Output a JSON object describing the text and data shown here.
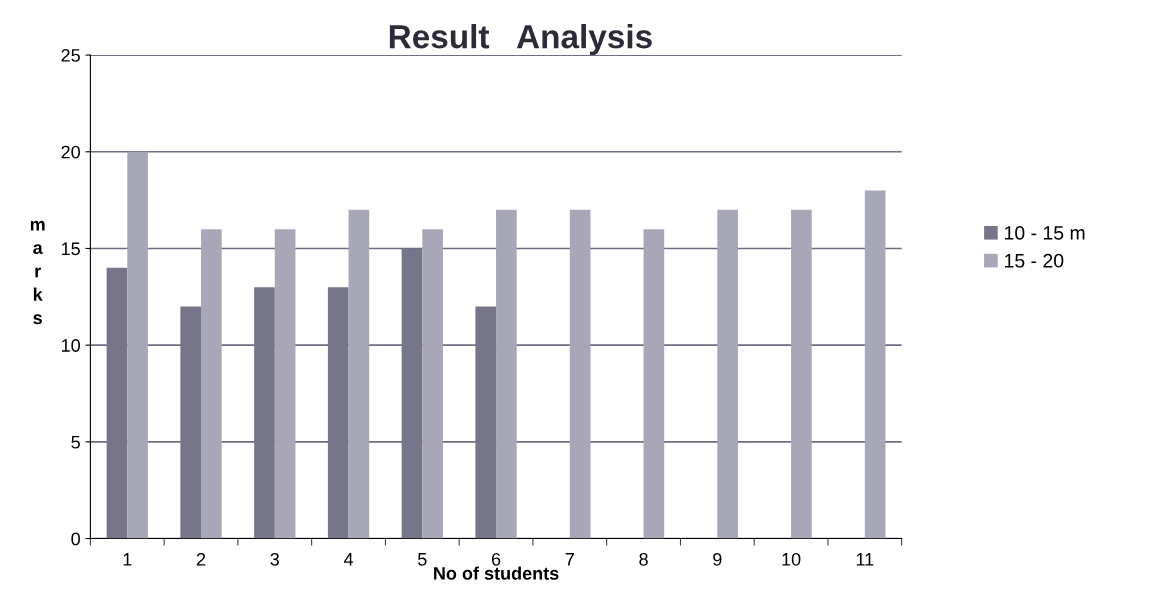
{
  "chart_data": {
    "type": "bar",
    "title": "Result   Analysis",
    "xlabel": "No of students",
    "ylabel": "marks",
    "categories": [
      "1",
      "2",
      "3",
      "4",
      "5",
      "6",
      "7",
      "8",
      "9",
      "10",
      "11"
    ],
    "series": [
      {
        "name": "10 - 15 m",
        "color": "#77758a",
        "values": [
          14,
          12,
          13,
          13,
          15,
          12,
          null,
          null,
          null,
          null,
          null
        ]
      },
      {
        "name": "15 - 20",
        "color": "#a8a7b8",
        "values": [
          20,
          16,
          16,
          17,
          16,
          17,
          17,
          16,
          17,
          17,
          18
        ]
      }
    ],
    "ylim": [
      0,
      25
    ],
    "yticks": [
      0,
      5,
      10,
      15,
      20,
      25
    ],
    "grid": "y",
    "legend": "right"
  }
}
